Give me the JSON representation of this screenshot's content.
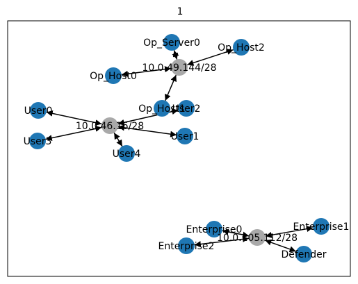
{
  "title": "1",
  "colors": {
    "host": "#1f77b4",
    "subnet": "#a9a9a9",
    "edge": "#000000",
    "frame": "#000000"
  },
  "nodes": [
    {
      "id": "op_server0",
      "label": "Op_Server0",
      "kind": "host"
    },
    {
      "id": "op_host2",
      "label": "Op_Host2",
      "kind": "host"
    },
    {
      "id": "subnet_49",
      "label": "10.0.49.144/28",
      "kind": "subnet"
    },
    {
      "id": "op_host0",
      "label": "Op_Host0",
      "kind": "host"
    },
    {
      "id": "op_host1",
      "label": "Op_Host1",
      "kind": "host"
    },
    {
      "id": "user2",
      "label": "User2",
      "kind": "host"
    },
    {
      "id": "user0",
      "label": "User0",
      "kind": "host"
    },
    {
      "id": "subnet_46",
      "label": "10.0.46.16/28",
      "kind": "subnet"
    },
    {
      "id": "user1",
      "label": "User1",
      "kind": "host"
    },
    {
      "id": "user3",
      "label": "User3",
      "kind": "host"
    },
    {
      "id": "user4",
      "label": "User4",
      "kind": "host"
    },
    {
      "id": "enterprise0",
      "label": "Enterprise0",
      "kind": "host"
    },
    {
      "id": "enterprise1",
      "label": "Enterprise1",
      "kind": "host"
    },
    {
      "id": "subnet_105",
      "label": "10.0.105.112/28",
      "kind": "subnet"
    },
    {
      "id": "enterprise2",
      "label": "Enterprise2",
      "kind": "host"
    },
    {
      "id": "defender",
      "label": "Defender",
      "kind": "host"
    }
  ],
  "edges": [
    {
      "from": "subnet_49",
      "to": "op_server0"
    },
    {
      "from": "subnet_49",
      "to": "op_host2"
    },
    {
      "from": "subnet_49",
      "to": "op_host0"
    },
    {
      "from": "subnet_49",
      "to": "op_host1"
    },
    {
      "from": "subnet_46",
      "to": "user0"
    },
    {
      "from": "subnet_46",
      "to": "user1"
    },
    {
      "from": "subnet_46",
      "to": "user2"
    },
    {
      "from": "subnet_46",
      "to": "user3"
    },
    {
      "from": "subnet_46",
      "to": "user4"
    },
    {
      "from": "subnet_105",
      "to": "enterprise0"
    },
    {
      "from": "subnet_105",
      "to": "enterprise1"
    },
    {
      "from": "subnet_105",
      "to": "enterprise2"
    },
    {
      "from": "subnet_105",
      "to": "defender"
    }
  ]
}
